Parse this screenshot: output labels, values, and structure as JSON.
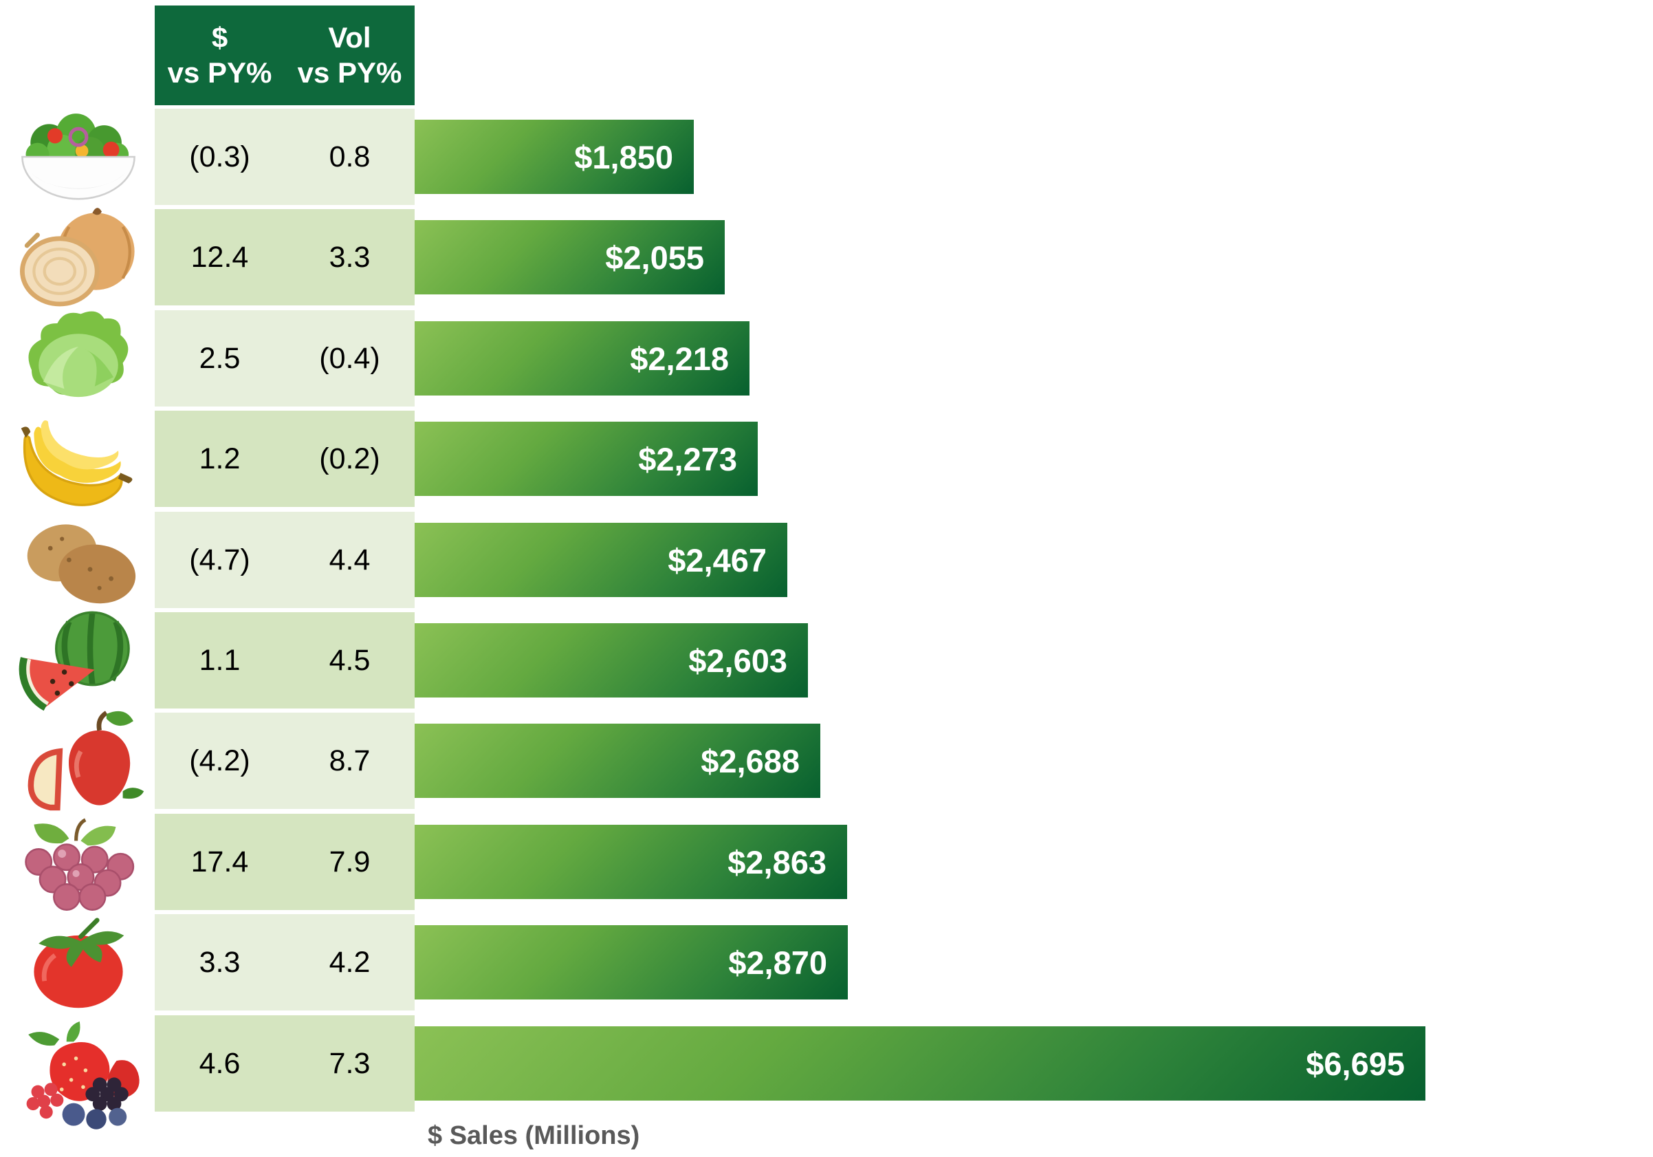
{
  "header": {
    "col1_line1": "$",
    "col1_line2": "vs PY%",
    "col2_line1": "Vol",
    "col2_line2": "vs PY%"
  },
  "axis_label": "$ Sales (Millions)",
  "colors": {
    "header_bg": "#0E693C",
    "row_light": "#E7EFDC",
    "row_dark": "#D5E5C0",
    "bar_gradient_light": "#8BC155",
    "bar_gradient_dark": "#07602F",
    "bar_label_text": "#FFFFFF",
    "table_text": "#000000",
    "axis_label_text": "#595959"
  },
  "rows": [
    {
      "icon": "salad-icon",
      "dollar_vs_py": "(0.3)",
      "vol_vs_py": "0.8",
      "sales_label": "$1,850"
    },
    {
      "icon": "onion-icon",
      "dollar_vs_py": "12.4",
      "vol_vs_py": "3.3",
      "sales_label": "$2,055"
    },
    {
      "icon": "lettuce-icon",
      "dollar_vs_py": "2.5",
      "vol_vs_py": "(0.4)",
      "sales_label": "$2,218"
    },
    {
      "icon": "banana-icon",
      "dollar_vs_py": "1.2",
      "vol_vs_py": "(0.2)",
      "sales_label": "$2,273"
    },
    {
      "icon": "potato-icon",
      "dollar_vs_py": "(4.7)",
      "vol_vs_py": "4.4",
      "sales_label": "$2,467"
    },
    {
      "icon": "watermelon-icon",
      "dollar_vs_py": "1.1",
      "vol_vs_py": "4.5",
      "sales_label": "$2,603"
    },
    {
      "icon": "apple-icon",
      "dollar_vs_py": "(4.2)",
      "vol_vs_py": "8.7",
      "sales_label": "$2,688"
    },
    {
      "icon": "grapes-icon",
      "dollar_vs_py": "17.4",
      "vol_vs_py": "7.9",
      "sales_label": "$2,863"
    },
    {
      "icon": "tomato-icon",
      "dollar_vs_py": "3.3",
      "vol_vs_py": "4.2",
      "sales_label": "$2,870"
    },
    {
      "icon": "berries-icon",
      "dollar_vs_py": "4.6",
      "vol_vs_py": "7.3",
      "sales_label": "$6,695"
    }
  ],
  "chart_data": {
    "type": "bar",
    "orientation": "horizontal",
    "categories": [
      "salad",
      "onions",
      "lettuce",
      "bananas",
      "potatoes",
      "watermelon",
      "apples",
      "grapes",
      "tomatoes",
      "berries"
    ],
    "series": [
      {
        "name": "$ Sales (Millions)",
        "values": [
          1850,
          2055,
          2218,
          2273,
          2467,
          2603,
          2688,
          2863,
          2870,
          6695
        ]
      },
      {
        "name": "$ vs PY%",
        "values": [
          -0.3,
          12.4,
          2.5,
          1.2,
          -4.7,
          1.1,
          -4.2,
          17.4,
          3.3,
          4.6
        ]
      },
      {
        "name": "Vol vs PY%",
        "values": [
          0.8,
          3.3,
          -0.4,
          -0.2,
          4.4,
          4.5,
          8.7,
          7.9,
          4.2,
          7.3
        ]
      }
    ],
    "data_labels": [
      "$1,850",
      "$2,055",
      "$2,218",
      "$2,273",
      "$2,467",
      "$2,603",
      "$2,688",
      "$2,863",
      "$2,870",
      "$6,695"
    ],
    "xlabel": "$ Sales (Millions)",
    "xlim": [
      0,
      6695
    ],
    "grid": false,
    "legend": false,
    "bars_sorted_ascending": true,
    "negative_values_shown_in_parentheses": true
  }
}
